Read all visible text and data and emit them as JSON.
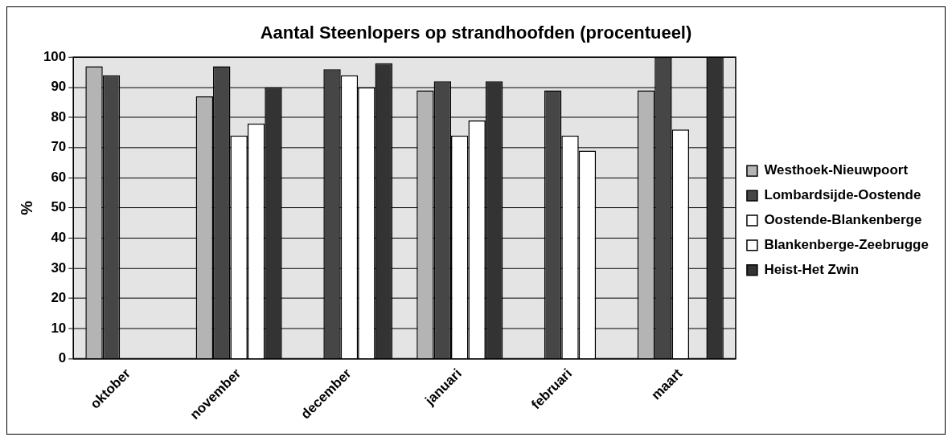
{
  "chart_data": {
    "type": "bar",
    "title": "Aantal Steenlopers op strandhoofden (procentueel)",
    "ylabel": "%",
    "categories": [
      "oktober",
      "november",
      "december",
      "januari",
      "februari",
      "maart"
    ],
    "series": [
      {
        "name": "Westhoek-Nieuwpoort",
        "color": "#b4b4b4",
        "values": [
          97,
          87,
          null,
          89,
          null,
          89
        ]
      },
      {
        "name": "Lombardsijde-Oostende",
        "color": "#464646",
        "values": [
          94,
          97,
          96,
          92,
          89,
          100
        ]
      },
      {
        "name": "Oostende-Blankenberge",
        "color": "#ffffff",
        "values": [
          null,
          74,
          94,
          74,
          74,
          76
        ]
      },
      {
        "name": "Blankenberge-Zeebrugge",
        "color": "#ffffff",
        "values": [
          null,
          78,
          90,
          79,
          69,
          null
        ]
      },
      {
        "name": "Heist-Het Zwin",
        "color": "#333333",
        "values": [
          null,
          90,
          98,
          92,
          null,
          100
        ]
      }
    ],
    "ylim": [
      0,
      100
    ],
    "yticks": [
      0,
      10,
      20,
      30,
      40,
      50,
      60,
      70,
      80,
      90,
      100
    ],
    "grid": "y",
    "legend": "right"
  }
}
